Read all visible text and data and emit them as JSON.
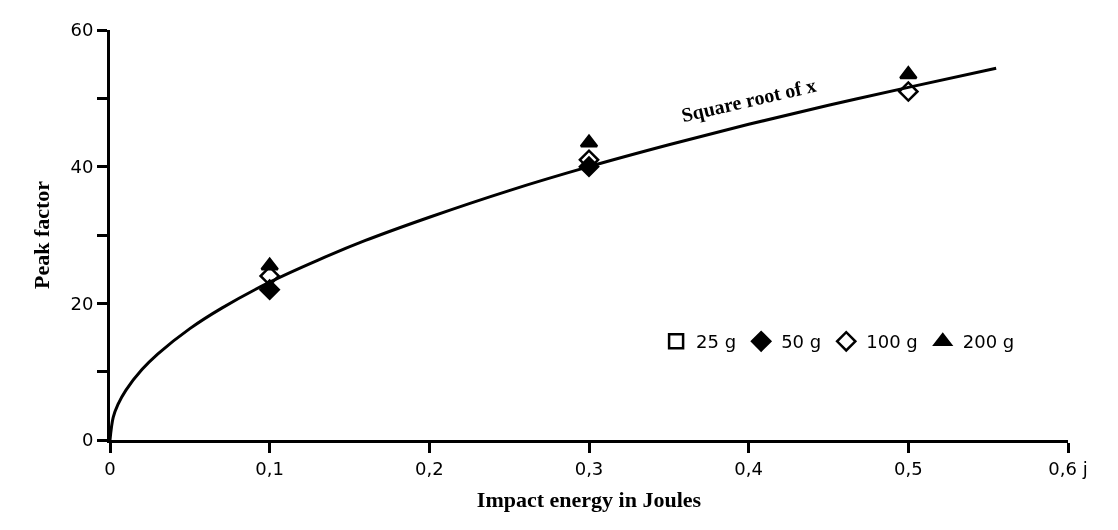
{
  "chart_data": {
    "type": "scatter",
    "xlabel": "Impact energy in Joules",
    "ylabel": "Peak factor",
    "xlim": [
      0,
      0.6
    ],
    "ylim": [
      0,
      60
    ],
    "xticks": [
      {
        "value": 0,
        "label": "0"
      },
      {
        "value": 0.1,
        "label": "0,1"
      },
      {
        "value": 0.2,
        "label": "0,2"
      },
      {
        "value": 0.3,
        "label": "0,3"
      },
      {
        "value": 0.4,
        "label": "0,4"
      },
      {
        "value": 0.5,
        "label": "0,5"
      },
      {
        "value": 0.6,
        "label": "0,6 j"
      }
    ],
    "yticks": [
      0,
      {
        "value": 10,
        "label": null
      },
      20,
      {
        "value": 30,
        "label": null
      },
      40,
      {
        "value": 50,
        "label": null
      },
      60
    ],
    "x": [
      0.1,
      0.3,
      0.5
    ],
    "series": [
      {
        "name": "25 g",
        "color": "#000000",
        "marker": "square-open",
        "values": [
          null,
          null,
          null
        ]
      },
      {
        "name": "50 g",
        "color": "#000000",
        "marker": "diamond",
        "values": [
          22,
          40,
          null
        ]
      },
      {
        "name": "100 g",
        "color": "#000000",
        "marker": "diamond-open",
        "values": [
          24,
          41,
          51
        ]
      },
      {
        "name": "200 g",
        "color": "#000000",
        "marker": "triangle",
        "values": [
          25.5,
          43.5,
          53.5
        ]
      },
      {
        "name": "Square root of x",
        "type": "line",
        "color": "#000000",
        "x": [
          0,
          0.002,
          0.005,
          0.01,
          0.02,
          0.03,
          0.05,
          0.07,
          0.1,
          0.13,
          0.16,
          0.2,
          0.25,
          0.3,
          0.35,
          0.4,
          0.45,
          0.5,
          0.555
        ],
        "values": [
          0,
          3.3,
          5.2,
          7.3,
          10.3,
          12.6,
          16.3,
          19.3,
          23.1,
          26.3,
          29.2,
          32.6,
          36.5,
          40.0,
          43.2,
          46.2,
          49.0,
          51.6,
          54.4
        ]
      }
    ],
    "legend": "bottom right",
    "grid": false
  }
}
